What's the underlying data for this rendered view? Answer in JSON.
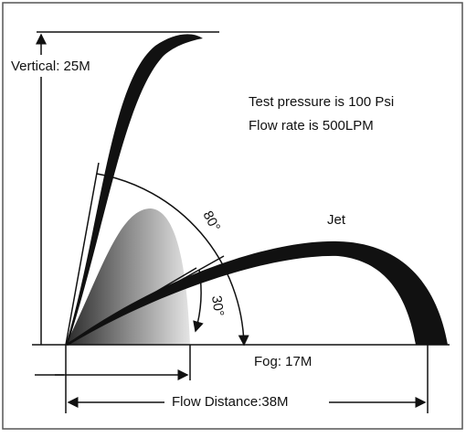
{
  "labels": {
    "vertical": "Vertical: 25M",
    "pressure": "Test pressure is 100 Psi",
    "flow_rate": "Flow rate is 500LPM",
    "jet": "Jet",
    "angle_high": "80°",
    "angle_low": "30°",
    "fog": "Fog: 17M",
    "flow_distance": "Flow Distance:38M"
  }
}
